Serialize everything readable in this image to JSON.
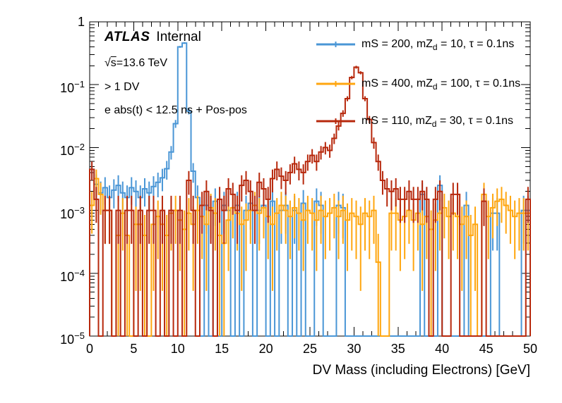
{
  "annotations": {
    "atlas": "ATLAS",
    "status": "Internal",
    "sqrt_sign": "√",
    "sqrt_var": "s",
    "sqrt_rest": "=13.6 TeV",
    "line_dv": "> 1 DV",
    "line_timing": "e abs(t) < 12.5 ns + Pos-pos"
  },
  "axes": {
    "x": {
      "title": "DV Mass (including Electrons) [GeV]",
      "min": 0,
      "max": 50,
      "major_ticks": [
        0,
        5,
        10,
        15,
        20,
        25,
        30,
        35,
        40,
        45,
        50
      ],
      "tick_labels": [
        "0",
        "5",
        "10",
        "15",
        "20",
        "25",
        "30",
        "35",
        "40",
        "45",
        "50"
      ],
      "minor_step": 1
    },
    "y": {
      "scale": "log",
      "min": 1e-05,
      "max": 1,
      "tick_labels": [
        {
          "v": 1,
          "base": "1",
          "exp": ""
        },
        {
          "v": 0.1,
          "base": "10",
          "exp": "−1"
        },
        {
          "v": 0.01,
          "base": "10",
          "exp": "−2"
        },
        {
          "v": 0.001,
          "base": "10",
          "exp": "−3"
        },
        {
          "v": 0.0001,
          "base": "10",
          "exp": "−4"
        },
        {
          "v": 1e-05,
          "base": "10",
          "exp": "−5"
        }
      ]
    }
  },
  "chart_data": {
    "type": "histogram-line",
    "title": "",
    "xlabel": "DV Mass (including Electrons) [GeV]",
    "ylabel": "",
    "xlim": [
      0,
      50
    ],
    "ylim": [
      1e-05,
      1
    ],
    "yscale": "log",
    "grid": false,
    "legend_position": "top-right",
    "bin_width": 0.5,
    "x_start": 0,
    "err_unit": 0.0005,
    "series": [
      {
        "name": "mS200_mZd10",
        "label": "mS = 200, mZd = 10, τ = 0.1ns",
        "label_parts": [
          "mS = 200, mZ",
          "d",
          " = 10, τ = 0.1ns"
        ],
        "color": "#4A96D6",
        "peak": {
          "x": 10.3,
          "y": 0.46
        },
        "values": [
          0.0045,
          0.0026,
          0.0019,
          0.0023,
          0.0016,
          0.0021,
          0.0025,
          0.0019,
          0.0016,
          0.0023,
          0.002,
          0.0016,
          0.0022,
          0.0019,
          0.0024,
          0.0028,
          0.0033,
          0.0046,
          0.0085,
          0.024,
          0.4,
          0.46,
          0.038,
          0.0042,
          0.0016,
          0,
          0.0012,
          0,
          0.0014,
          0,
          0.0012,
          0.001,
          0,
          0.0012,
          0,
          0.001,
          0.0013,
          0,
          0.001,
          0.0012,
          0,
          0.0014,
          0,
          0.001,
          0.0012,
          0,
          0.001,
          0,
          0.0013,
          0,
          0,
          0.0014,
          0.0012,
          0,
          0,
          0,
          0.0012,
          0.0011,
          0,
          0,
          0,
          0,
          0,
          0,
          0,
          0,
          0,
          0,
          0,
          0,
          0,
          0,
          0,
          0,
          0,
          0.0018,
          0,
          0,
          0,
          0.0025,
          0,
          0,
          0,
          0,
          0,
          0.0012,
          0,
          0,
          0,
          0,
          0,
          0.0009,
          0.0009,
          0,
          0,
          0,
          0,
          0,
          0.001,
          0.001
        ]
      },
      {
        "name": "mS400_mZd100",
        "label": "mS = 400, mZd = 100, τ = 0.1ns",
        "label_parts": [
          "mS = 400, mZ",
          "d",
          " = 100, τ = 0.1ns"
        ],
        "color": "#FFA60F",
        "peak": null,
        "values": [
          0.0012,
          0.0032,
          0.0018,
          0.001,
          0.001,
          0,
          0.0004,
          0.0009,
          0.0004,
          0,
          0.0006,
          0.0006,
          0.0004,
          0,
          0.0006,
          0.0008,
          0.0006,
          0.0004,
          0.0009,
          0.001,
          0.0007,
          0.0005,
          0.0009,
          0.0006,
          0.001,
          0.0008,
          0.0006,
          0.0011,
          0.0009,
          0.0004,
          0.0003,
          0.0007,
          0.0011,
          0.0009,
          0.0006,
          0.0007,
          0.001,
          0.0012,
          0.0009,
          0.0011,
          0.0008,
          0.0006,
          0.0009,
          0.0012,
          0.001,
          0.0008,
          0.0011,
          0.0009,
          0.0007,
          0.001,
          0.0009,
          0.0007,
          0.001,
          0.0008,
          0.0009,
          0.0011,
          0.0008,
          0.001,
          0.0007,
          0.0009,
          0.0008,
          0.0006,
          0.0009,
          0.0008,
          0.001,
          0.00015,
          0,
          0,
          0.0009,
          0.0009,
          0.0007,
          0.0008,
          0.001,
          0.0007,
          0.0009,
          0.0006,
          0.0008,
          0.0005,
          0.0007,
          0.0009,
          0.0011,
          0.0008,
          0.0009,
          0.0008,
          0.0006,
          0.0008,
          0.0004,
          0.0006,
          0,
          0.0018,
          0.0008,
          0.0011,
          0.0014,
          0.0015,
          0.0012,
          0.001,
          0.0008,
          0.0009,
          0.0009,
          0.0009
        ]
      },
      {
        "name": "mS110_mZd30",
        "label": "mS = 110, mZd = 30, τ = 0.1ns",
        "label_parts": [
          "mS = 110, mZ",
          "d",
          " = 30, τ = 0.1ns"
        ],
        "color": "#B7280C",
        "peak": {
          "x": 30.2,
          "y": 0.19
        },
        "values": [
          0.0045,
          0.0015,
          0,
          0.001,
          0.001,
          0,
          0.001,
          0,
          0.001,
          0.001,
          0,
          0.001,
          0,
          0.001,
          0.001,
          0,
          0.001,
          0,
          0.001,
          0,
          0.001,
          0,
          0.003,
          0.001,
          0,
          0.0012,
          0.002,
          0.001,
          0,
          0.0015,
          0.001,
          0.0022,
          0.0018,
          0.001,
          0.0025,
          0.003,
          0.002,
          0.001,
          0.0028,
          0.0022,
          0.0015,
          0.0032,
          0.0045,
          0.0035,
          0.003,
          0.004,
          0.0055,
          0.0045,
          0.004,
          0.006,
          0.0075,
          0.006,
          0.0085,
          0.01,
          0.009,
          0.014,
          0.022,
          0.035,
          0.06,
          0.13,
          0.19,
          0.155,
          0.06,
          0.028,
          0.012,
          0.006,
          0.003,
          0.0022,
          0.002,
          0.0022,
          0.0015,
          0.0015,
          0.002,
          0.0015,
          0.0015,
          0.002,
          0.0015,
          0,
          0.0015,
          0.002,
          0,
          0,
          0.0018,
          0.0018,
          0,
          0,
          0,
          0,
          0,
          0.0014,
          0,
          0,
          0,
          0,
          0,
          0,
          0,
          0,
          0,
          0.0015
        ]
      }
    ]
  }
}
